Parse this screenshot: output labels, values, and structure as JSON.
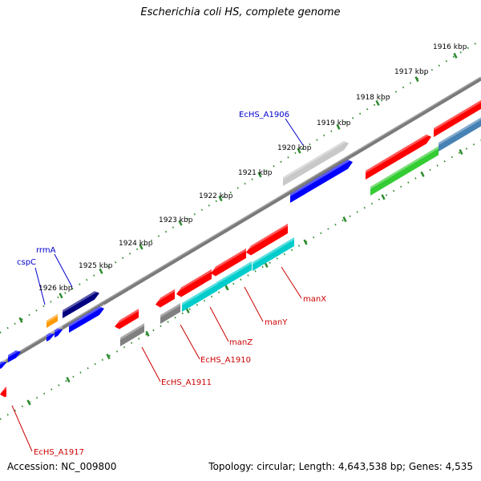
{
  "title": "Escherichia coli HS, complete genome",
  "accession": {
    "label": "Accession:",
    "value": "NC_009800"
  },
  "summary": {
    "topology_label": "Topology:",
    "topology": "circular;",
    "length_label": "Length:",
    "length": "4,643,538 bp;",
    "genes_label": "Genes:",
    "genes": "4,535"
  },
  "ticks": [
    "1916 kbp",
    "1917 kbp",
    "1918 kbp",
    "1919 kbp",
    "1920 kbp",
    "1921 kbp",
    "1922 kbp",
    "1923 kbp",
    "1924 kbp",
    "1925 kbp",
    "1926 kbp"
  ],
  "labels_forward": [
    "EcHS_A1906",
    "rrmA",
    "cspC"
  ],
  "labels_reverse": [
    "manX",
    "manY",
    "manZ",
    "EcHS_A1910",
    "EcHS_A1911",
    "EcHS_A1917"
  ],
  "colors": {
    "backbone": "#808080",
    "tick": "#2e8b2e",
    "forward_label": "#0000cc",
    "reverse_label": "#cc0000",
    "cds_red": "#ff0000",
    "cds_blue": "#0000ff",
    "cds_gray": "#808080",
    "cds_lightgray": "#c8c8c8",
    "cds_cyan": "#00cccc",
    "cds_green": "#33cc33",
    "cds_steel": "#4682b4",
    "cds_navy": "#000080",
    "cds_orange": "#ff9900"
  }
}
